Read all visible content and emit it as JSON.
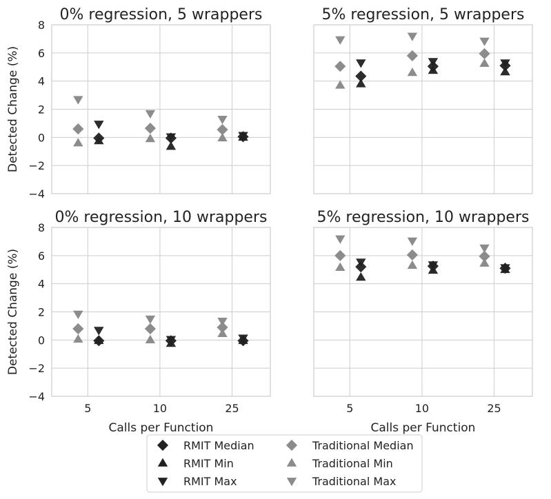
{
  "chart_data": {
    "type": "scatter",
    "x_categories": [
      "5",
      "10",
      "25"
    ],
    "xlabel": "Calls per Function",
    "ylabel": "Detected Change (%)",
    "ylim": [
      -4,
      8
    ],
    "yticks": [
      -4,
      -2,
      0,
      2,
      4,
      6,
      8
    ],
    "yticklabels": [
      "−4",
      "−2",
      "0",
      "2",
      "4",
      "6",
      "8"
    ],
    "grid": true,
    "legend": {
      "placement": "bottom-center",
      "entries": [
        {
          "label": "RMIT Median",
          "marker": "diamond",
          "color": "#222222"
        },
        {
          "label": "RMIT Min",
          "marker": "triangle-up",
          "color": "#222222"
        },
        {
          "label": "RMIT Max",
          "marker": "triangle-down",
          "color": "#222222"
        },
        {
          "label": "Traditional Median",
          "marker": "diamond",
          "color": "#8c8c8c"
        },
        {
          "label": "Traditional Min",
          "marker": "triangle-up",
          "color": "#8c8c8c"
        },
        {
          "label": "Traditional Max",
          "marker": "triangle-down",
          "color": "#8c8c8c"
        }
      ]
    },
    "panels": [
      {
        "title": "0% regression, 5 wrappers",
        "traditional": {
          "median": [
            0.6,
            0.65,
            0.55
          ],
          "min": [
            -0.4,
            -0.1,
            -0.05
          ],
          "max": [
            2.7,
            1.7,
            1.3
          ]
        },
        "rmit": {
          "median": [
            -0.05,
            -0.05,
            0.05
          ],
          "min": [
            -0.25,
            -0.65,
            0.0
          ],
          "max": [
            0.95,
            0.05,
            0.15
          ]
        }
      },
      {
        "title": "5% regression, 5 wrappers",
        "traditional": {
          "median": [
            5.05,
            5.8,
            5.95
          ],
          "min": [
            3.7,
            4.6,
            5.25
          ],
          "max": [
            6.95,
            7.2,
            6.85
          ]
        },
        "rmit": {
          "median": [
            4.35,
            5.05,
            5.1
          ],
          "min": [
            3.8,
            4.75,
            4.65
          ],
          "max": [
            5.3,
            5.4,
            5.3
          ]
        }
      },
      {
        "title": "0% regression, 10 wrappers",
        "traditional": {
          "median": [
            0.8,
            0.8,
            0.9
          ],
          "min": [
            0.05,
            0.0,
            0.45
          ],
          "max": [
            1.85,
            1.5,
            1.35
          ]
        },
        "rmit": {
          "median": [
            -0.05,
            -0.05,
            -0.05
          ],
          "min": [
            -0.05,
            -0.25,
            -0.05
          ],
          "max": [
            0.7,
            0.05,
            0.15
          ]
        }
      },
      {
        "title": "5% regression, 10 wrappers",
        "traditional": {
          "median": [
            6.0,
            6.05,
            5.95
          ],
          "min": [
            5.15,
            5.3,
            5.45
          ],
          "max": [
            7.2,
            7.05,
            6.55
          ]
        },
        "rmit": {
          "median": [
            5.2,
            5.25,
            5.1
          ],
          "min": [
            4.45,
            4.95,
            5.0
          ],
          "max": [
            5.55,
            5.35,
            5.15
          ]
        }
      }
    ]
  }
}
